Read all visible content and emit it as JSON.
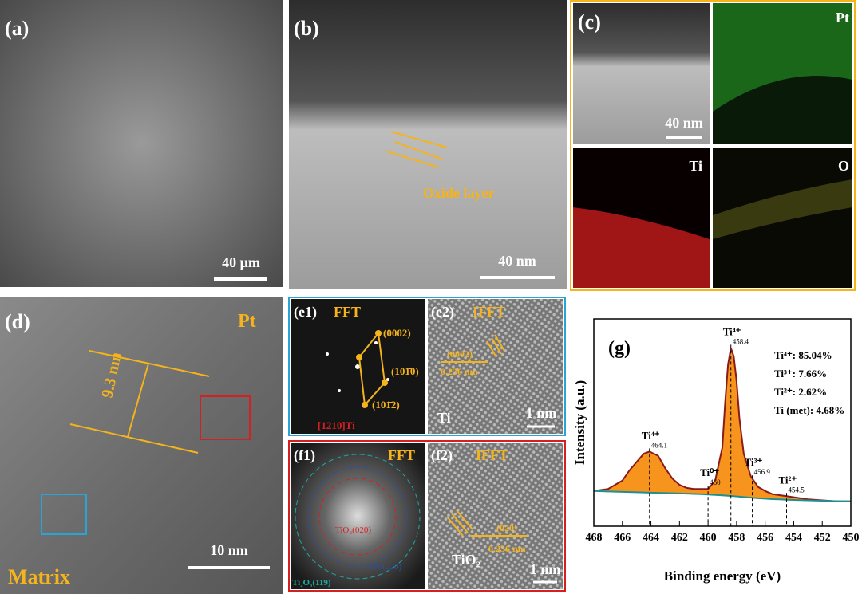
{
  "panels": {
    "a": {
      "label": "(a)",
      "scale_bar": "40 μm"
    },
    "b": {
      "label": "(b)",
      "annotation": "Oxide layer",
      "scale_bar": "40 nm"
    },
    "c": {
      "label": "(c)",
      "scale_bar": "40 nm",
      "maps": [
        "Pt",
        "Ti",
        "O"
      ]
    },
    "d": {
      "label": "(d)",
      "phase": "Pt",
      "thickness": "9.3 nm",
      "matrix": "Matrix",
      "scale_bar": "10 nm"
    },
    "e1": {
      "label": "(e1)",
      "title": "FFT",
      "spots": [
        "(0002)",
        "(101̄0)",
        "(101̄2)"
      ],
      "zone_axis": "[1̄21̄0]Ti"
    },
    "e2": {
      "label": "(e2)",
      "title": "IFFT",
      "plane": "(0002)",
      "spacing": "0.236 nm",
      "phase": "Ti",
      "scale_bar": "1 nm"
    },
    "f1": {
      "label": "(f1)",
      "title": "FFT",
      "rings": [
        "TiO₂(020)",
        "TiO(220)",
        "Ti₂O₃(119)"
      ]
    },
    "f2": {
      "label": "(f2)",
      "title": "IFFT",
      "plane": "(020)",
      "spacing": "0.236 nm",
      "phase": "TiO₂",
      "scale_bar": "1 nm"
    }
  },
  "chart_data": {
    "type": "line",
    "label": "(g)",
    "xlabel": "Binding energy (eV)",
    "ylabel": "Intensity (a.u.)",
    "xlim": [
      468,
      450
    ],
    "ylim": [
      0,
      100
    ],
    "xticks": [
      468,
      466,
      464,
      462,
      460,
      458,
      456,
      454,
      452,
      450
    ],
    "x": [
      468,
      467,
      466,
      465.5,
      465,
      464.5,
      464.1,
      463.5,
      463,
      462.5,
      462,
      461.5,
      461,
      460.5,
      460,
      459.5,
      459,
      458.8,
      458.6,
      458.4,
      458.2,
      458,
      457.8,
      457.5,
      457,
      456.5,
      456,
      455.5,
      455,
      454.5,
      454,
      453,
      452,
      451,
      450
    ],
    "series": [
      {
        "color": "#8b1a1a",
        "values": [
          17,
          18,
          22,
          27,
          31,
          35,
          36,
          34,
          28,
          23,
          20,
          18.5,
          18,
          18,
          18,
          22,
          38,
          60,
          78,
          86,
          82,
          70,
          52,
          35,
          24,
          19,
          17,
          15.5,
          15,
          14.5,
          14,
          13,
          12.5,
          12,
          12
        ]
      },
      {
        "color": "#1f8f8f",
        "values": [
          17,
          16.8,
          16.6,
          16.5,
          16.4,
          16.3,
          16.2,
          16.1,
          16,
          15.9,
          15.8,
          15.7,
          15.6,
          15.5,
          15.3,
          15.1,
          14.9,
          14.8,
          14.7,
          14.6,
          14.5,
          14.4,
          14.3,
          14.1,
          13.8,
          13.5,
          13.3,
          13.1,
          13,
          12.8,
          12.7,
          12.5,
          12.3,
          12.1,
          12
        ]
      }
    ],
    "fill": "#f7941d",
    "peaks": [
      {
        "label": "Ti⁴⁺",
        "x": 464.1
      },
      {
        "label": "Ti⁰⁺",
        "x": 460
      },
      {
        "label": "Ti⁴⁺",
        "x": 458.4
      },
      {
        "label": "Ti³⁺",
        "x": 456.9
      },
      {
        "label": "Ti²⁺",
        "x": 454.5
      }
    ],
    "notes": [
      "Ti⁴⁺: 85.04%",
      "Ti³⁺: 7.66%",
      "Ti²⁺: 2.62%",
      "Ti (met): 4.68%"
    ]
  }
}
